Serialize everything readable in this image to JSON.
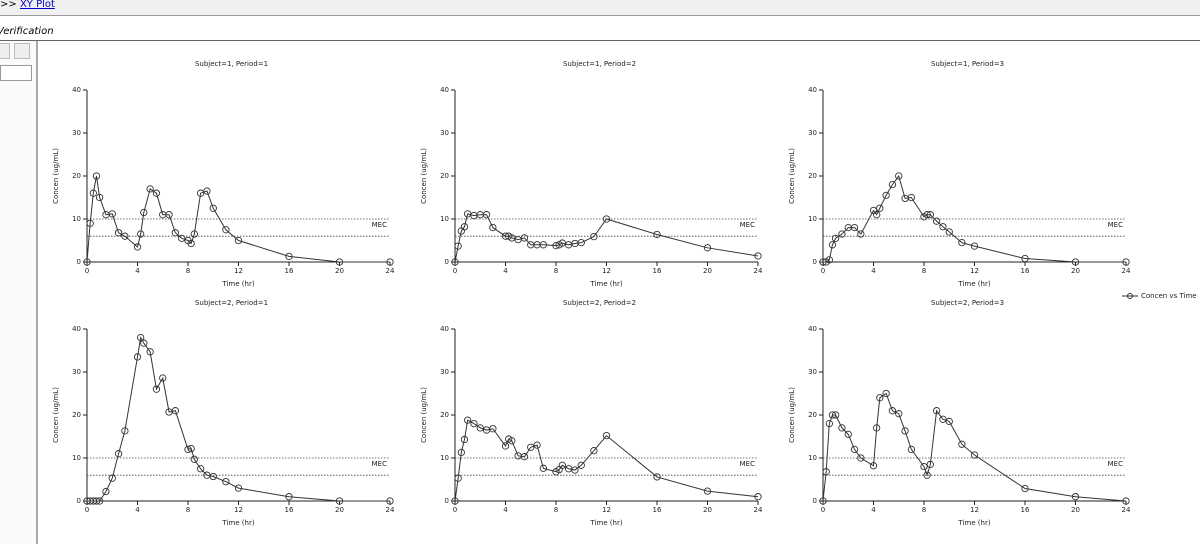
{
  "breadcrumb": {
    "prefix": ">>",
    "link": "XY Plot"
  },
  "tab": "Verification",
  "legend": "Concen vs Time",
  "chart_data": [
    {
      "type": "line",
      "title": "Subject=1, Period=1",
      "xlabel": "Time (hr)",
      "ylabel": "Concen (ug/mL)",
      "color": "#333333",
      "x": [
        0,
        0.25,
        0.5,
        0.75,
        1,
        1.5,
        2,
        2.5,
        3,
        4,
        4.25,
        4.5,
        5,
        5.5,
        6,
        6.5,
        7,
        7.5,
        8,
        8.25,
        8.5,
        9,
        9.5,
        10,
        11,
        12,
        16,
        20,
        24
      ],
      "values": [
        0,
        9,
        16,
        20,
        15,
        11,
        11.2,
        6.8,
        6,
        3.5,
        6.5,
        11.5,
        17,
        16,
        11,
        11,
        6.8,
        5.5,
        5,
        4.3,
        6.5,
        16,
        16.5,
        12.5,
        7.5,
        5,
        1.3,
        0,
        0
      ],
      "xlim": [
        0,
        24
      ],
      "ylim": [
        0,
        40
      ],
      "xticks": [
        0,
        4,
        8,
        12,
        16,
        20,
        24
      ],
      "yticks": [
        0,
        10,
        20,
        30,
        40
      ],
      "reference_lines": [
        10,
        6
      ],
      "reference_label": "MEC"
    },
    {
      "type": "line",
      "title": "Subject=1, Period=2",
      "xlabel": "Time (hr)",
      "ylabel": "Concen (ug/mL)",
      "color": "#333333",
      "x": [
        0,
        0.25,
        0.5,
        0.75,
        1,
        1.5,
        2,
        2.5,
        3,
        4,
        4.25,
        4.5,
        5,
        5.5,
        6,
        6.5,
        7,
        8,
        8.25,
        8.5,
        9,
        9.5,
        10,
        11,
        12,
        16,
        20,
        24
      ],
      "values": [
        0,
        3.7,
        7.2,
        8.2,
        11.2,
        10.8,
        11,
        11,
        8,
        6,
        6,
        5.6,
        5.2,
        5.6,
        4,
        4,
        4,
        3.8,
        4,
        4.4,
        4,
        4.3,
        4.5,
        5.9,
        10,
        6.4,
        3.3,
        1.4
      ],
      "xlim": [
        0,
        24
      ],
      "ylim": [
        0,
        40
      ],
      "xticks": [
        0,
        4,
        8,
        12,
        16,
        20,
        24
      ],
      "yticks": [
        0,
        10,
        20,
        30,
        40
      ],
      "reference_lines": [
        10,
        6
      ],
      "reference_label": "MEC"
    },
    {
      "type": "line",
      "title": "Subject=1, Period=3",
      "xlabel": "Time (hr)",
      "ylabel": "Concen (ug/mL)",
      "color": "#333333",
      "x": [
        0,
        0.25,
        0.5,
        0.75,
        1,
        1.5,
        2,
        2.5,
        3,
        4,
        4.25,
        4.5,
        5,
        5.5,
        6,
        6.5,
        7,
        8,
        8.25,
        8.5,
        9,
        9.5,
        10,
        11,
        12,
        16,
        20,
        24
      ],
      "values": [
        0,
        0,
        0.5,
        4,
        5.5,
        6.5,
        8,
        8,
        6.5,
        12,
        11,
        12.5,
        15.5,
        18,
        20,
        14.8,
        15,
        10.5,
        11,
        11,
        9.5,
        8.2,
        7,
        4.5,
        3.7,
        0.8,
        0,
        0
      ],
      "xlim": [
        0,
        24
      ],
      "ylim": [
        0,
        40
      ],
      "xticks": [
        0,
        4,
        8,
        12,
        16,
        20,
        24
      ],
      "yticks": [
        0,
        10,
        20,
        30,
        40
      ],
      "reference_lines": [
        10,
        6
      ],
      "reference_label": "MEC"
    },
    {
      "type": "line",
      "title": "Subject=2, Period=1",
      "xlabel": "Time (hr)",
      "ylabel": "Concen (ug/mL)",
      "color": "#333333",
      "x": [
        0,
        0.25,
        0.5,
        0.75,
        1,
        1.5,
        2,
        2.5,
        3,
        4,
        4.25,
        4.5,
        5,
        5.5,
        6,
        6.5,
        7,
        8,
        8.25,
        8.5,
        9,
        9.5,
        10,
        11,
        12,
        16,
        20,
        24
      ],
      "values": [
        0,
        0,
        0,
        0,
        0,
        2.2,
        5.3,
        11,
        16.3,
        33.5,
        38,
        36.7,
        34.7,
        26,
        28.6,
        20.7,
        21,
        12,
        12.2,
        9.7,
        7.5,
        6,
        5.7,
        4.5,
        3,
        1,
        0,
        0
      ],
      "xlim": [
        0,
        24
      ],
      "ylim": [
        0,
        40
      ],
      "xticks": [
        0,
        4,
        8,
        12,
        16,
        20,
        24
      ],
      "yticks": [
        0,
        10,
        20,
        30,
        40
      ],
      "reference_lines": [
        10,
        6
      ],
      "reference_label": "MEC"
    },
    {
      "type": "line",
      "title": "Subject=2, Period=2",
      "xlabel": "Time (hr)",
      "ylabel": "Concen (ug/mL)",
      "color": "#333333",
      "x": [
        0,
        0.25,
        0.5,
        0.75,
        1,
        1.5,
        2,
        2.5,
        3,
        4,
        4.25,
        4.5,
        5,
        5.5,
        6,
        6.5,
        7,
        8,
        8.25,
        8.5,
        9,
        9.5,
        10,
        11,
        12,
        16,
        20,
        24
      ],
      "values": [
        0,
        5.3,
        11.3,
        14.3,
        18.8,
        18,
        17,
        16.5,
        16.8,
        12.8,
        14.4,
        14,
        10.5,
        10.3,
        12.5,
        13,
        7.6,
        6.8,
        7.3,
        8.3,
        7.5,
        7.2,
        8.3,
        11.7,
        15.2,
        5.6,
        2.3,
        1
      ],
      "xlim": [
        0,
        24
      ],
      "ylim": [
        0,
        40
      ],
      "xticks": [
        0,
        4,
        8,
        12,
        16,
        20,
        24
      ],
      "yticks": [
        0,
        10,
        20,
        30,
        40
      ],
      "reference_lines": [
        10,
        6
      ],
      "reference_label": "MEC"
    },
    {
      "type": "line",
      "title": "Subject=2, Period=3",
      "xlabel": "Time (hr)",
      "ylabel": "Concen (ug/mL)",
      "color": "#333333",
      "x": [
        0,
        0.25,
        0.5,
        0.75,
        1,
        1.5,
        2,
        2.5,
        3,
        4,
        4.25,
        4.5,
        5,
        5.5,
        6,
        6.5,
        7,
        8,
        8.25,
        8.5,
        9,
        9.5,
        10,
        11,
        12,
        16,
        20,
        24
      ],
      "values": [
        0,
        6.8,
        18,
        20,
        20,
        17,
        15.5,
        12,
        10,
        8.2,
        17,
        24,
        25,
        21,
        20.3,
        16.3,
        12,
        8,
        6,
        8.5,
        21,
        19,
        18.5,
        13.2,
        10.7,
        2.9,
        1,
        0
      ],
      "xlim": [
        0,
        24
      ],
      "ylim": [
        0,
        40
      ],
      "xticks": [
        0,
        4,
        8,
        12,
        16,
        20,
        24
      ],
      "yticks": [
        0,
        10,
        20,
        30,
        40
      ],
      "reference_lines": [
        10,
        6
      ],
      "reference_label": "MEC"
    }
  ]
}
